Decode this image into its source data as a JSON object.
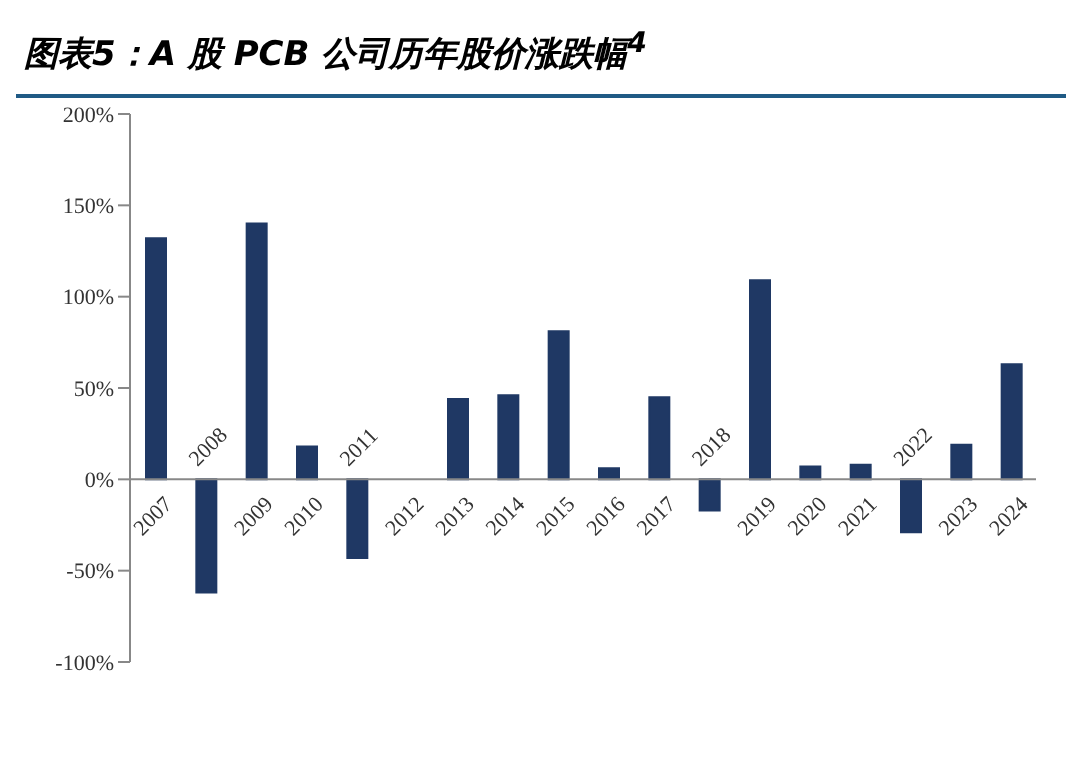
{
  "chart_data": {
    "type": "bar",
    "title": "图表5：A 股 PCB 公司历年股价涨跌幅$^{4}$",
    "categories": [
      "2007",
      "2008",
      "2009",
      "2010",
      "2011",
      "2012",
      "2013",
      "2014",
      "2015",
      "2016",
      "2017",
      "2018",
      "2019",
      "2020",
      "2021",
      "2022",
      "2023",
      "2024"
    ],
    "values": [
      132,
      -62,
      140,
      18,
      -43,
      0,
      44,
      46,
      81,
      6,
      45,
      -17,
      109,
      7,
      8,
      -29,
      19,
      63
    ],
    "color": "#1f3864",
    "ylim": [
      -100,
      200
    ],
    "yticks": [
      {
        "value": -100,
        "label": "-100%"
      },
      {
        "value": -50,
        "label": "-50%"
      },
      {
        "value": 0,
        "label": "0%"
      },
      {
        "value": 50,
        "label": "50%"
      },
      {
        "value": 100,
        "label": "100%"
      },
      {
        "value": 150,
        "label": "150%"
      },
      {
        "value": 200,
        "label": "200%"
      }
    ],
    "grid": false,
    "legend": false
  }
}
